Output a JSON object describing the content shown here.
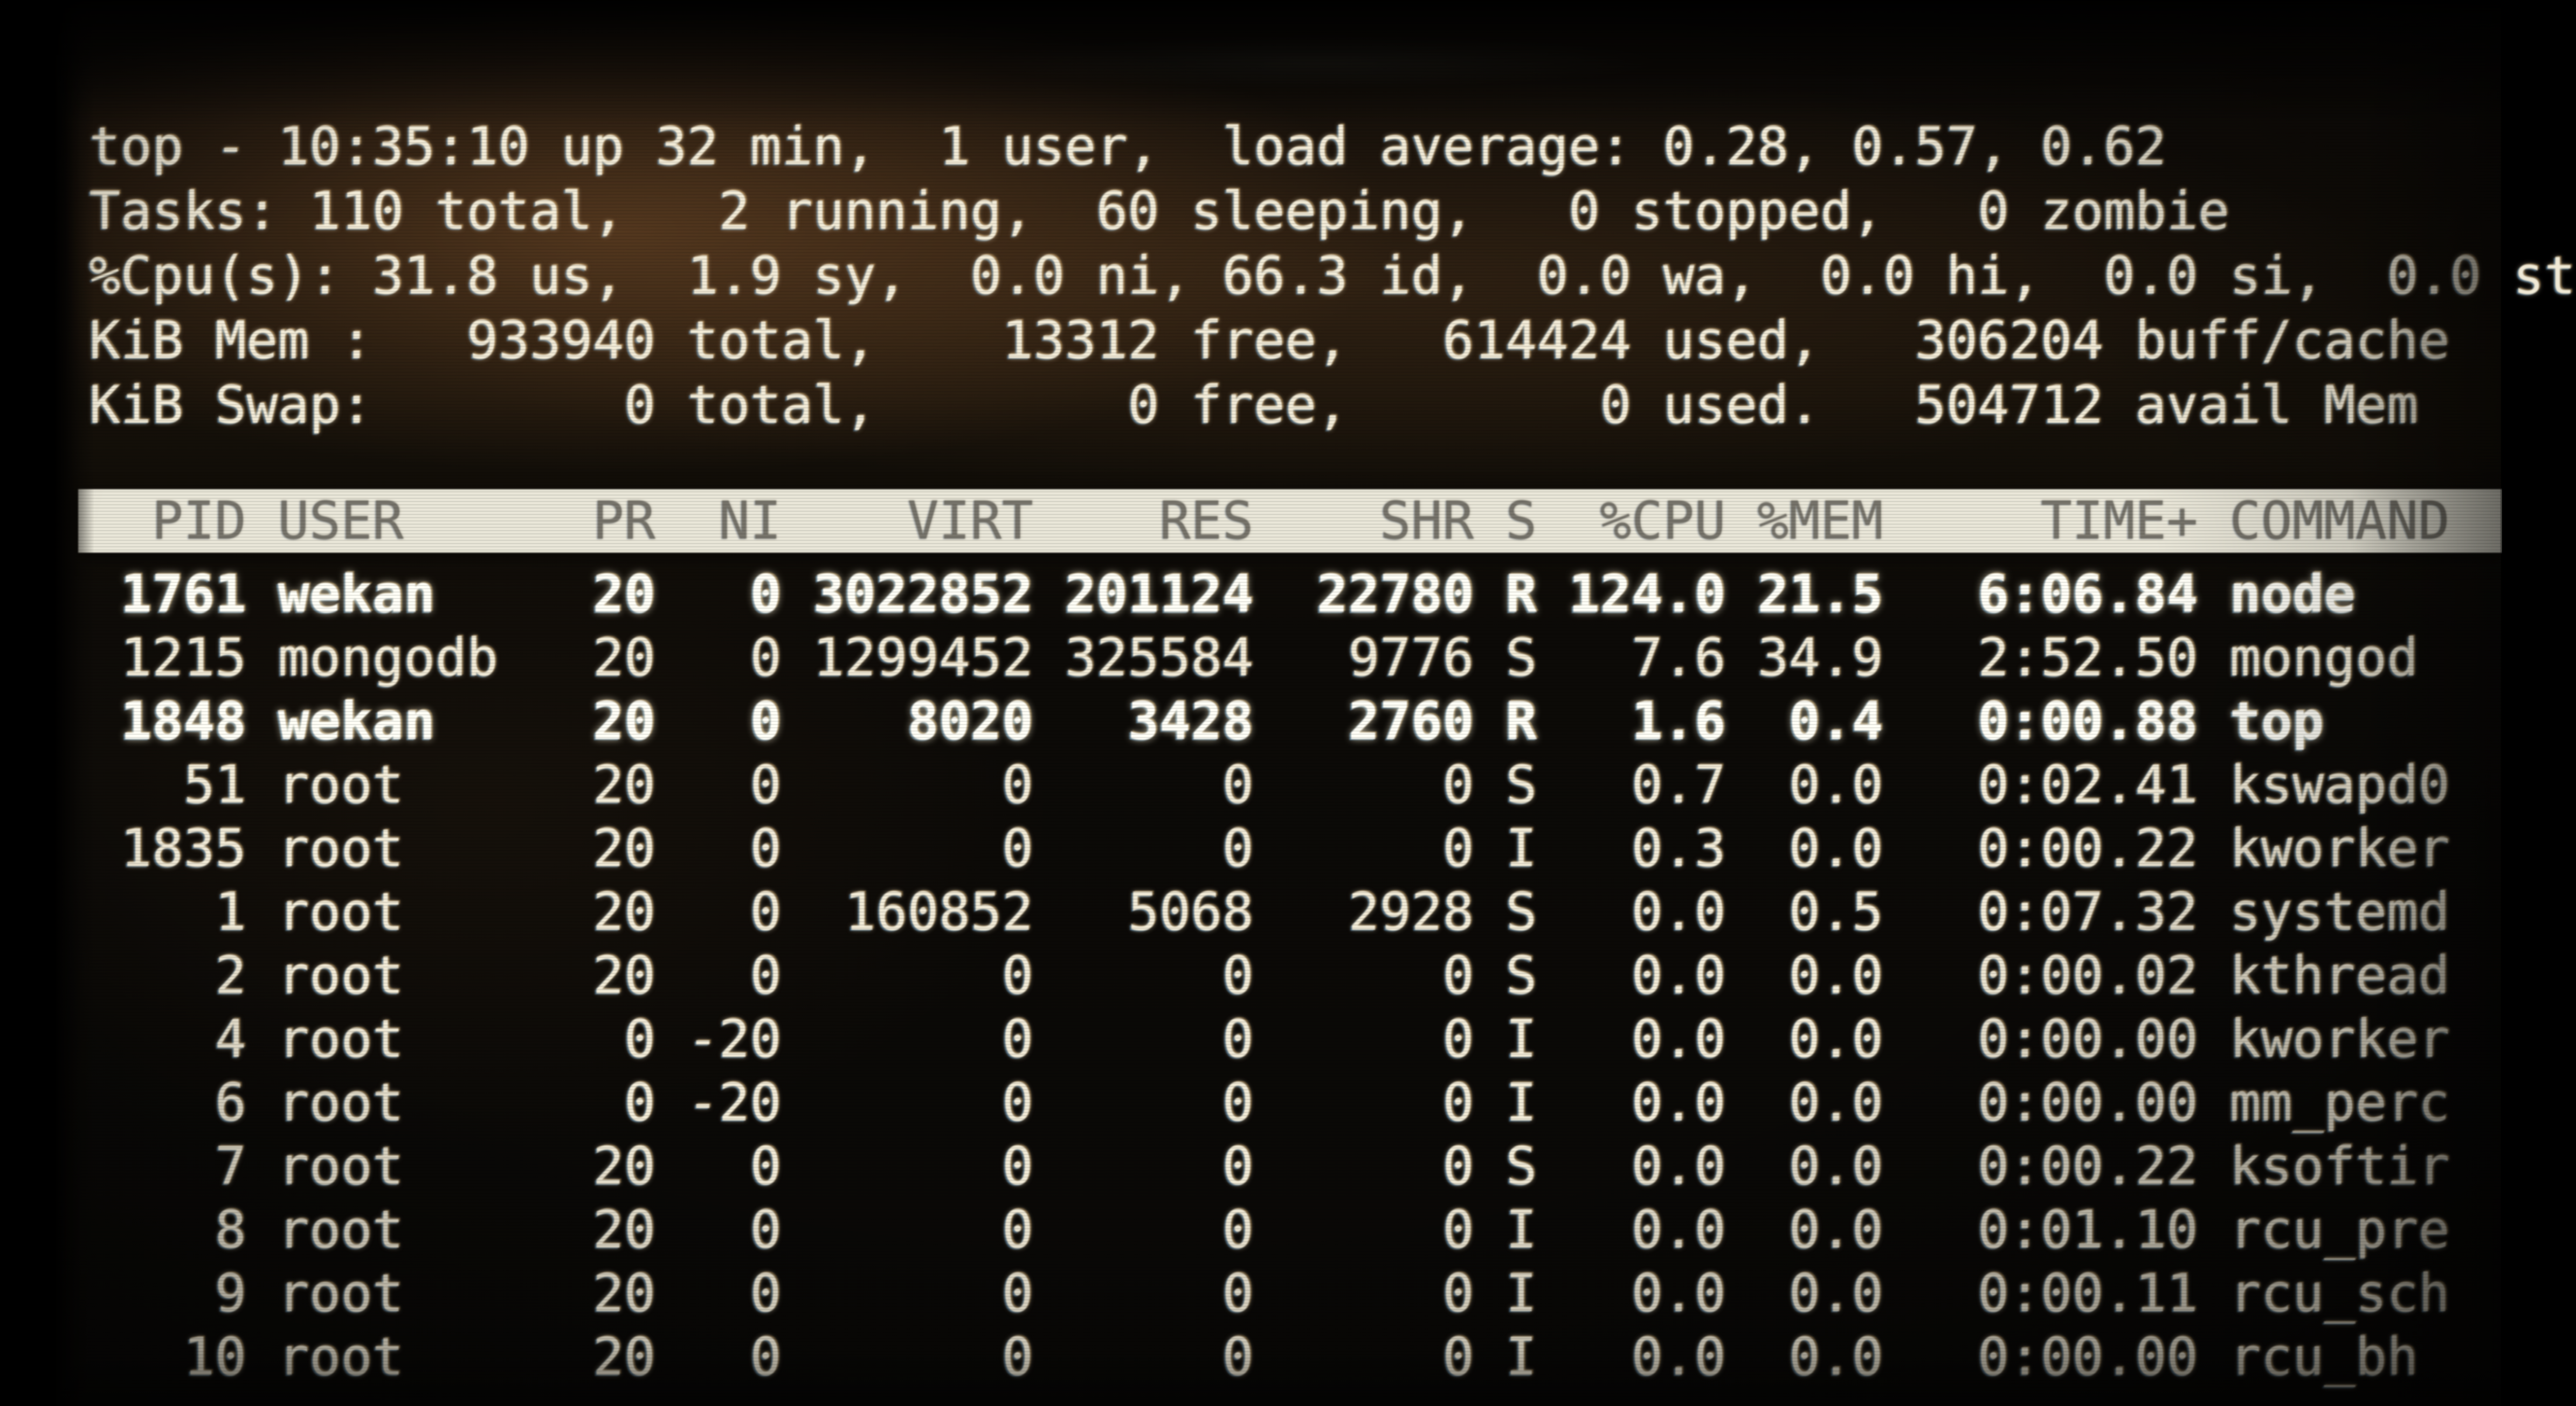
{
  "screen": {
    "app": "top",
    "summary_lines": [
      "top - 10:35:10 up 32 min,  1 user,  load average: 0.28, 0.57, 0.62",
      "Tasks: 110 total,   2 running,  60 sleeping,   0 stopped,   0 zombie",
      "%Cpu(s): 31.8 us,  1.9 sy,  0.0 ni, 66.3 id,  0.0 wa,  0.0 hi,  0.0 si,  0.0 st",
      "KiB Mem :   933940 total,    13312 free,   614424 used,   306204 buff/cache",
      "KiB Swap:        0 total,        0 free,        0 used.   504712 avail Mem"
    ],
    "process_table": {
      "header_text": "  PID USER      PR  NI    VIRT    RES    SHR S  %CPU %MEM     TIME+ COMMAND",
      "columns": [
        "PID",
        "USER",
        "PR",
        "NI",
        "VIRT",
        "RES",
        "SHR",
        "S",
        "%CPU",
        "%MEM",
        "TIME+",
        "COMMAND"
      ],
      "rows": [
        {
          "pid": "1761",
          "user": "wekan",
          "pr": "20",
          "ni": "0",
          "virt": "3022852",
          "res": "201124",
          "shr": "22780",
          "s": "R",
          "cpu": "124.0",
          "mem": "21.5",
          "time": "6:06.84",
          "command": "node",
          "running": true
        },
        {
          "pid": "1215",
          "user": "mongodb",
          "pr": "20",
          "ni": "0",
          "virt": "1299452",
          "res": "325584",
          "shr": "9776",
          "s": "S",
          "cpu": "7.6",
          "mem": "34.9",
          "time": "2:52.50",
          "command": "mongod",
          "running": false
        },
        {
          "pid": "1848",
          "user": "wekan",
          "pr": "20",
          "ni": "0",
          "virt": "8020",
          "res": "3428",
          "shr": "2760",
          "s": "R",
          "cpu": "1.6",
          "mem": "0.4",
          "time": "0:00.88",
          "command": "top",
          "running": true
        },
        {
          "pid": "51",
          "user": "root",
          "pr": "20",
          "ni": "0",
          "virt": "0",
          "res": "0",
          "shr": "0",
          "s": "S",
          "cpu": "0.7",
          "mem": "0.0",
          "time": "0:02.41",
          "command": "kswapd0",
          "running": false
        },
        {
          "pid": "1835",
          "user": "root",
          "pr": "20",
          "ni": "0",
          "virt": "0",
          "res": "0",
          "shr": "0",
          "s": "I",
          "cpu": "0.3",
          "mem": "0.0",
          "time": "0:00.22",
          "command": "kworker",
          "running": false
        },
        {
          "pid": "1",
          "user": "root",
          "pr": "20",
          "ni": "0",
          "virt": "160852",
          "res": "5068",
          "shr": "2928",
          "s": "S",
          "cpu": "0.0",
          "mem": "0.5",
          "time": "0:07.32",
          "command": "systemd",
          "running": false
        },
        {
          "pid": "2",
          "user": "root",
          "pr": "20",
          "ni": "0",
          "virt": "0",
          "res": "0",
          "shr": "0",
          "s": "S",
          "cpu": "0.0",
          "mem": "0.0",
          "time": "0:00.02",
          "command": "kthread",
          "running": false
        },
        {
          "pid": "4",
          "user": "root",
          "pr": "0",
          "ni": "-20",
          "virt": "0",
          "res": "0",
          "shr": "0",
          "s": "I",
          "cpu": "0.0",
          "mem": "0.0",
          "time": "0:00.00",
          "command": "kworker",
          "running": false
        },
        {
          "pid": "6",
          "user": "root",
          "pr": "0",
          "ni": "-20",
          "virt": "0",
          "res": "0",
          "shr": "0",
          "s": "I",
          "cpu": "0.0",
          "mem": "0.0",
          "time": "0:00.00",
          "command": "mm_perc",
          "running": false
        },
        {
          "pid": "7",
          "user": "root",
          "pr": "20",
          "ni": "0",
          "virt": "0",
          "res": "0",
          "shr": "0",
          "s": "S",
          "cpu": "0.0",
          "mem": "0.0",
          "time": "0:00.22",
          "command": "ksoftir",
          "running": false
        },
        {
          "pid": "8",
          "user": "root",
          "pr": "20",
          "ni": "0",
          "virt": "0",
          "res": "0",
          "shr": "0",
          "s": "I",
          "cpu": "0.0",
          "mem": "0.0",
          "time": "0:01.10",
          "command": "rcu_pre",
          "running": false
        },
        {
          "pid": "9",
          "user": "root",
          "pr": "20",
          "ni": "0",
          "virt": "0",
          "res": "0",
          "shr": "0",
          "s": "I",
          "cpu": "0.0",
          "mem": "0.0",
          "time": "0:00.11",
          "command": "rcu_sch",
          "running": false
        },
        {
          "pid": "10",
          "user": "root",
          "pr": "20",
          "ni": "0",
          "virt": "0",
          "res": "0",
          "shr": "0",
          "s": "I",
          "cpu": "0.0",
          "mem": "0.0",
          "time": "0:00.00",
          "command": "rcu_bh",
          "running": false
        }
      ]
    },
    "colors": {
      "background": "#0b0907",
      "summary_tint": "#7d522c",
      "text": "#f1ead6",
      "bright_text": "#fffef6",
      "header_bg": "#e9e6d8",
      "header_text": "#76736a"
    }
  }
}
